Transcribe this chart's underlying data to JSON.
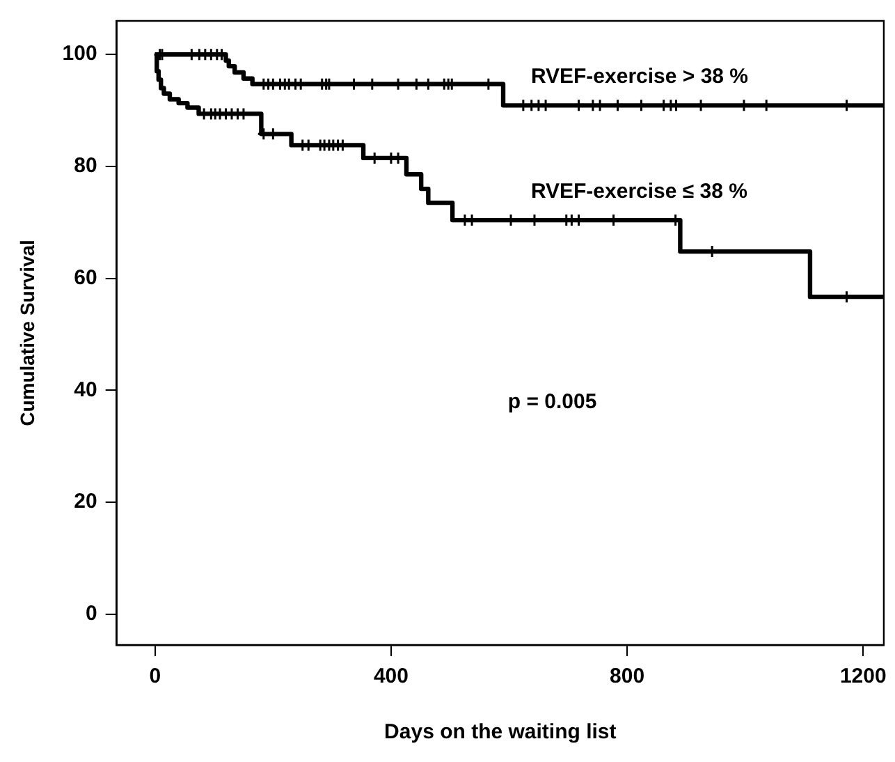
{
  "chart_data": {
    "type": "step",
    "xlabel": "Days on the waiting list",
    "ylabel": "Cumulative Survival",
    "xlim": [
      -65,
      1235
    ],
    "xticks": [
      0,
      400,
      800,
      1200
    ],
    "ylim": [
      -5.5,
      106
    ],
    "yticks": [
      0,
      20,
      40,
      60,
      80,
      100
    ],
    "grid": false,
    "legend": false,
    "line_style": "solid",
    "annotations": [
      "p = 0.005"
    ],
    "series": [
      {
        "name": "RVEF-exercise > 38 %",
        "color": "#000000",
        "marker": "none",
        "x": [
          0,
          120,
          125,
          135,
          150,
          165,
          175,
          590,
          1235
        ],
        "values": [
          100,
          98.9,
          97.9,
          96.8,
          95.7,
          94.7,
          94.7,
          90.9,
          90.9
        ]
      },
      {
        "name": "RVEF-exercise ≤ 38 %",
        "color": "#000000",
        "marker": "none",
        "x": [
          0,
          3,
          6,
          10,
          15,
          25,
          40,
          55,
          74,
          180,
          231,
          353,
          426,
          451,
          463,
          504,
          890,
          1110,
          1235
        ],
        "values": [
          100,
          97,
          95.5,
          94,
          93,
          92,
          91.3,
          90.5,
          89.4,
          85.8,
          83.8,
          81.5,
          78.6,
          76,
          73.5,
          70.4,
          64.8,
          56.7,
          56.7
        ]
      },
      {
        "type": "scatter",
        "color": "#000000",
        "marker": "cross",
        "x": [
          8,
          12,
          62,
          75,
          85,
          95,
          105,
          113,
          184,
          192,
          200,
          212,
          220,
          227,
          238,
          247,
          283,
          290,
          295,
          337,
          368,
          412,
          443,
          463,
          490,
          497,
          503,
          565,
          624,
          638,
          650,
          662,
          718,
          742,
          754,
          784,
          824,
          862,
          874,
          883,
          925,
          998,
          1036,
          1172
        ],
        "values": [
          100,
          100,
          100,
          100,
          100,
          100,
          100,
          100,
          94.7,
          94.7,
          94.7,
          94.7,
          94.7,
          94.7,
          94.7,
          94.7,
          94.7,
          94.7,
          94.7,
          94.7,
          94.7,
          94.7,
          94.7,
          94.7,
          94.7,
          94.7,
          94.7,
          94.7,
          90.9,
          90.9,
          90.9,
          90.9,
          90.9,
          90.9,
          90.9,
          90.9,
          90.9,
          90.9,
          90.9,
          90.9,
          90.9,
          90.9,
          90.9,
          90.9
        ]
      },
      {
        "type": "scatter",
        "color": "#000000",
        "marker": "cross",
        "x": [
          83,
          95,
          102,
          110,
          120,
          130,
          140,
          150,
          184,
          200,
          250,
          260,
          280,
          287,
          295,
          302,
          310,
          318,
          372,
          400,
          412,
          525,
          537,
          603,
          643,
          697,
          706,
          718,
          777,
          882,
          944,
          1172
        ],
        "values": [
          89.4,
          89.4,
          89.4,
          89.4,
          89.4,
          89.4,
          89.4,
          89.4,
          85.8,
          85.8,
          83.8,
          83.8,
          83.8,
          83.8,
          83.8,
          83.8,
          83.8,
          83.8,
          81.5,
          81.5,
          81.5,
          70.4,
          70.4,
          70.4,
          70.4,
          70.4,
          70.4,
          70.4,
          70.4,
          70.4,
          64.8,
          56.7
        ]
      }
    ]
  }
}
